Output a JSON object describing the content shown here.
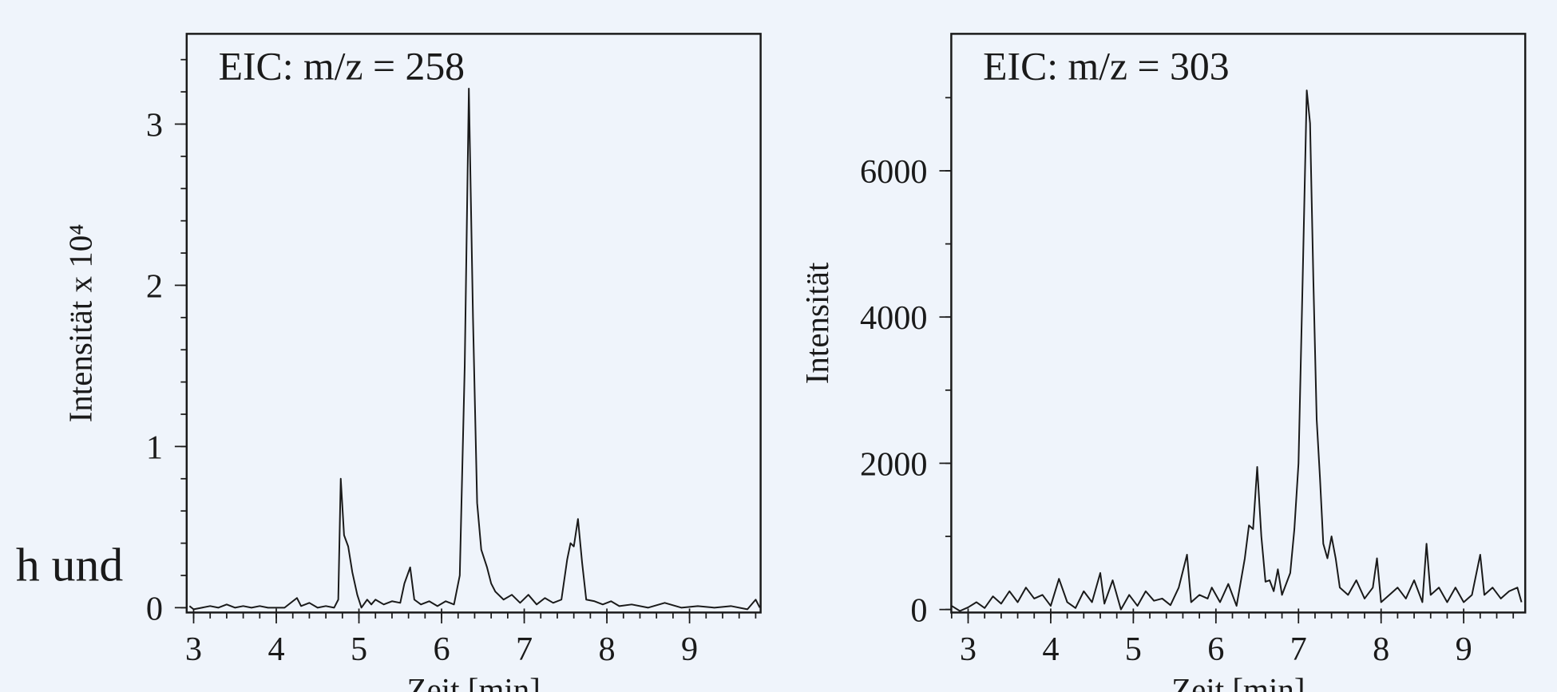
{
  "fragment": "h und",
  "chart_data": [
    {
      "type": "line",
      "title": "EIC: m/z = 258",
      "xlabel": "Zeit [min]",
      "ylabel": "Intensität x 10⁴",
      "color": "#1a1a1a",
      "xlim": [
        2.916,
        9.86
      ],
      "ylim": [
        -0.03,
        3.56
      ],
      "xticks": [
        3,
        4,
        5,
        6,
        7,
        8,
        9
      ],
      "yticks": [
        0,
        1,
        2,
        3
      ],
      "x_minor_step": 0.2,
      "y_minor_step": 0.2,
      "x": [
        2.95,
        3.0,
        3.1,
        3.2,
        3.3,
        3.4,
        3.5,
        3.6,
        3.7,
        3.8,
        3.9,
        4.0,
        4.1,
        4.2,
        4.25,
        4.3,
        4.4,
        4.5,
        4.6,
        4.7,
        4.75,
        4.78,
        4.82,
        4.87,
        4.92,
        4.98,
        5.03,
        5.1,
        5.15,
        5.2,
        5.3,
        5.4,
        5.5,
        5.55,
        5.62,
        5.67,
        5.75,
        5.85,
        5.95,
        6.05,
        6.15,
        6.22,
        6.28,
        6.33,
        6.38,
        6.43,
        6.48,
        6.55,
        6.6,
        6.65,
        6.75,
        6.85,
        6.95,
        7.05,
        7.15,
        7.25,
        7.35,
        7.45,
        7.52,
        7.56,
        7.6,
        7.65,
        7.7,
        7.75,
        7.85,
        7.95,
        8.05,
        8.15,
        8.3,
        8.5,
        8.7,
        8.9,
        9.1,
        9.3,
        9.5,
        9.7,
        9.8,
        9.85
      ],
      "values": [
        0.01,
        -0.01,
        0.0,
        0.01,
        0.0,
        0.02,
        0.0,
        0.01,
        0.0,
        0.01,
        0.0,
        0.0,
        0.0,
        0.04,
        0.06,
        0.01,
        0.03,
        0.0,
        0.01,
        0.0,
        0.05,
        0.8,
        0.45,
        0.38,
        0.22,
        0.08,
        0.0,
        0.05,
        0.02,
        0.05,
        0.02,
        0.04,
        0.03,
        0.15,
        0.25,
        0.05,
        0.02,
        0.04,
        0.01,
        0.04,
        0.02,
        0.2,
        1.5,
        3.22,
        1.8,
        0.65,
        0.36,
        0.25,
        0.15,
        0.1,
        0.05,
        0.08,
        0.03,
        0.08,
        0.02,
        0.06,
        0.03,
        0.05,
        0.3,
        0.4,
        0.38,
        0.55,
        0.28,
        0.05,
        0.04,
        0.02,
        0.04,
        0.01,
        0.02,
        0.0,
        0.03,
        0.0,
        0.01,
        0.0,
        0.01,
        -0.01,
        0.05,
        0.0
      ]
    },
    {
      "type": "line",
      "title": "EIC: m/z = 303",
      "xlabel": "Zeit [min]",
      "ylabel": "Intensität",
      "color": "#1a1a1a",
      "xlim": [
        2.796,
        9.745
      ],
      "ylim": [
        -41,
        7873
      ],
      "xticks": [
        3,
        4,
        5,
        6,
        7,
        8,
        9
      ],
      "yticks": [
        0,
        2000,
        4000,
        6000
      ],
      "x_minor_step": 0.2,
      "y_minor_step": 1000,
      "x": [
        2.8,
        2.9,
        3.0,
        3.1,
        3.2,
        3.3,
        3.4,
        3.5,
        3.6,
        3.7,
        3.8,
        3.9,
        4.0,
        4.1,
        4.2,
        4.3,
        4.4,
        4.5,
        4.6,
        4.65,
        4.75,
        4.85,
        4.95,
        5.05,
        5.15,
        5.25,
        5.35,
        5.45,
        5.55,
        5.65,
        5.7,
        5.8,
        5.9,
        5.95,
        6.05,
        6.15,
        6.25,
        6.35,
        6.4,
        6.45,
        6.5,
        6.55,
        6.6,
        6.65,
        6.7,
        6.75,
        6.8,
        6.9,
        6.95,
        7.0,
        7.05,
        7.1,
        7.14,
        7.18,
        7.22,
        7.26,
        7.3,
        7.35,
        7.4,
        7.45,
        7.5,
        7.6,
        7.7,
        7.8,
        7.9,
        7.95,
        8.0,
        8.1,
        8.2,
        8.3,
        8.4,
        8.5,
        8.55,
        8.6,
        8.7,
        8.8,
        8.9,
        9.0,
        9.1,
        9.2,
        9.25,
        9.35,
        9.45,
        9.55,
        9.65,
        9.7
      ],
      "values": [
        50,
        -20,
        30,
        100,
        20,
        180,
        80,
        250,
        100,
        300,
        150,
        200,
        50,
        420,
        100,
        20,
        250,
        100,
        500,
        80,
        400,
        0,
        200,
        50,
        250,
        120,
        150,
        60,
        300,
        750,
        100,
        200,
        150,
        300,
        100,
        350,
        50,
        700,
        1150,
        1100,
        1950,
        1000,
        380,
        400,
        250,
        550,
        200,
        500,
        1100,
        2000,
        4500,
        7100,
        6650,
        4500,
        2600,
        1800,
        900,
        700,
        1000,
        700,
        300,
        200,
        400,
        150,
        300,
        700,
        100,
        200,
        300,
        150,
        400,
        100,
        900,
        200,
        300,
        100,
        300,
        100,
        200,
        750,
        200,
        300,
        150,
        250,
        300,
        100
      ]
    }
  ]
}
